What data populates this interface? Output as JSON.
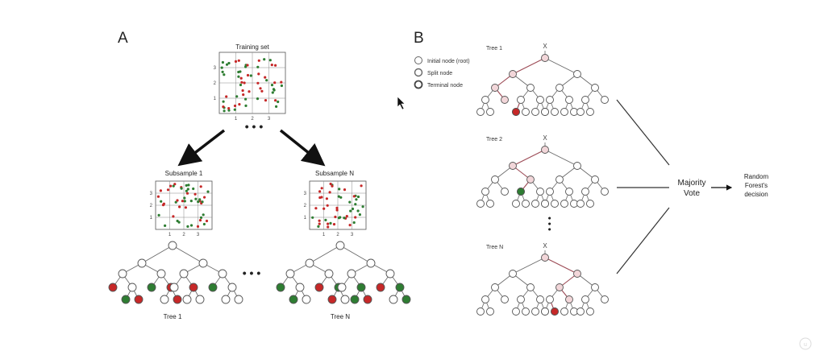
{
  "panel_a": {
    "label": "A",
    "training_set_title": "Training set",
    "subsample_1_title": "Subsample 1",
    "subsample_n_title": "Subsample  N",
    "tree_1_label": "Tree 1",
    "tree_n_label": "Tree N",
    "grid_ticks_x": [
      "1",
      "2",
      "3"
    ],
    "grid_ticks_y": [
      "3",
      "2",
      "1"
    ],
    "ellipsis": "• • •"
  },
  "panel_b": {
    "label": "B",
    "legend": [
      {
        "label": "Initial node (root)"
      },
      {
        "label": "Split node"
      },
      {
        "label": "Terminal node"
      }
    ],
    "trees": [
      {
        "label": "Tree 1",
        "root_label": "X",
        "leaf_color": "#c62828"
      },
      {
        "label": "Tree 2",
        "root_label": "X",
        "leaf_color": "#2e7d32"
      },
      {
        "label": "Tree N",
        "root_label": "X",
        "leaf_color": "#c62828"
      }
    ],
    "vertical_ellipsis": "• • •",
    "majority_vote": [
      "Majority",
      "Vote"
    ],
    "decision": [
      "Random",
      "Forest's",
      "decision"
    ]
  },
  "colors": {
    "red": "#c62828",
    "green": "#2e7d32",
    "path_fill": "#f2d6d9",
    "path_line": "#9c4a55",
    "node_stroke": "#555555"
  }
}
